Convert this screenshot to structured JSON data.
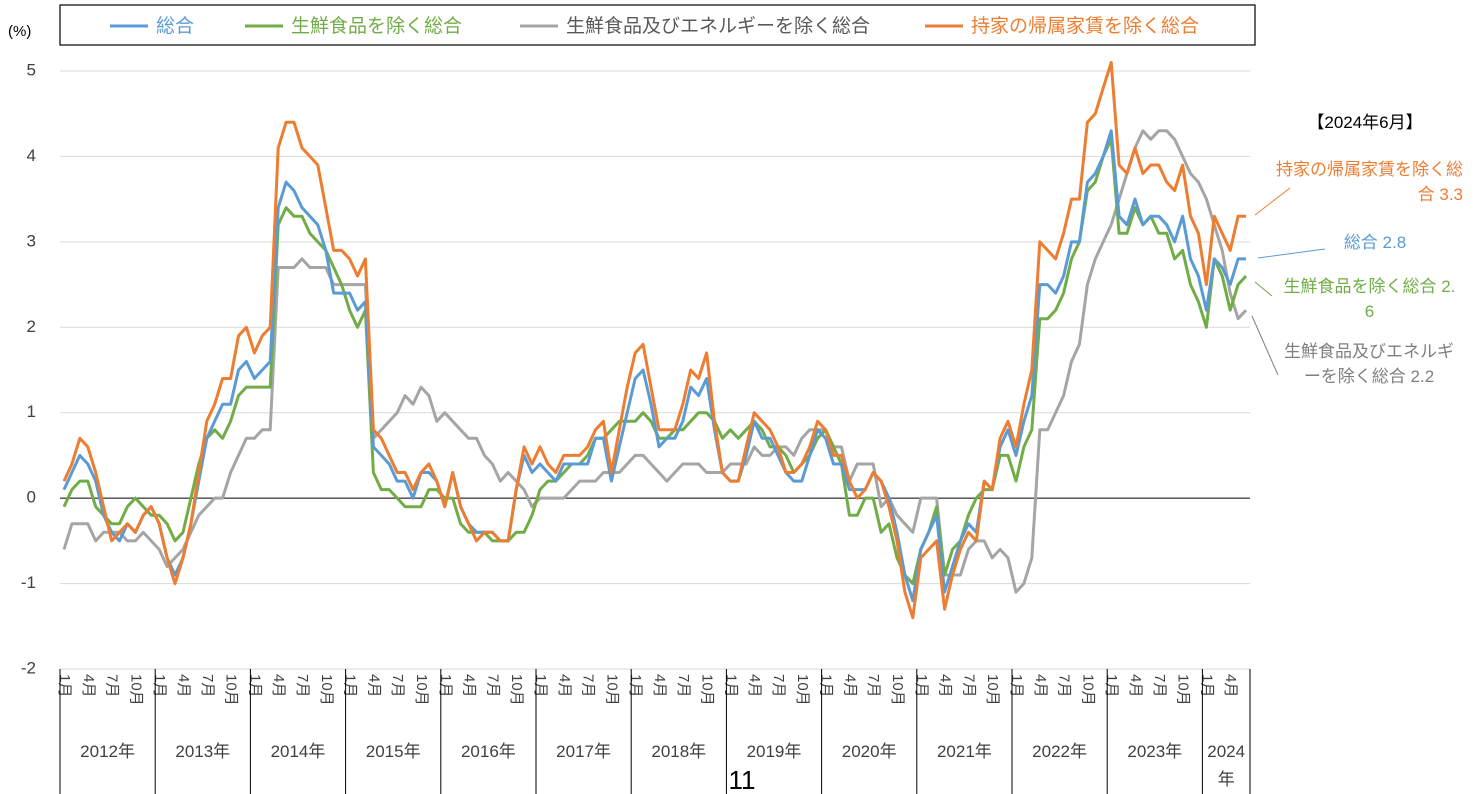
{
  "chart_data": {
    "type": "line",
    "ylabel": "(%)",
    "ylim": [
      -2,
      5
    ],
    "yticks": [
      -2,
      -1,
      0,
      1,
      2,
      3,
      4,
      5
    ],
    "grid": true,
    "categories": [
      "1月",
      null,
      null,
      "4月",
      null,
      null,
      "7月",
      null,
      null,
      "10月",
      null,
      null,
      "1月",
      null,
      null,
      "4月",
      null,
      null,
      "7月",
      null,
      null,
      "10月",
      null,
      null,
      "1月",
      null,
      null,
      "4月",
      null,
      null,
      "7月",
      null,
      null,
      "10月",
      null,
      null,
      "1月",
      null,
      null,
      "4月",
      null,
      null,
      "7月",
      null,
      null,
      "10月",
      null,
      null,
      "1月",
      null,
      null,
      "4月",
      null,
      null,
      "7月",
      null,
      null,
      "10月",
      null,
      null,
      "1月",
      null,
      null,
      "4月",
      null,
      null,
      "7月",
      null,
      null,
      "10月",
      null,
      null,
      "1月",
      null,
      null,
      "4月",
      null,
      null,
      "7月",
      null,
      null,
      "10月",
      null,
      null,
      "1月",
      null,
      null,
      "4月",
      null,
      null,
      "7月",
      null,
      null,
      "10月",
      null,
      null,
      "1月",
      null,
      null,
      "4月",
      null,
      null,
      "7月",
      null,
      null,
      "10月",
      null,
      null,
      "1月",
      null,
      null,
      "4月",
      null,
      null,
      "7月",
      null,
      null,
      "10月",
      null,
      null,
      "1月",
      null,
      null,
      "4月",
      null,
      null,
      "7月",
      null,
      null,
      "10月",
      null,
      null,
      "1月",
      null,
      null,
      "4月",
      null,
      null,
      "7月",
      null,
      null,
      "10月",
      null,
      null,
      "1月",
      null,
      null,
      "4月",
      null,
      null
    ],
    "years": [
      "2012年",
      "2013年",
      "2014年",
      "2015年",
      "2016年",
      "2017年",
      "2018年",
      "2019年",
      "2020年",
      "2021年",
      "2022年",
      "2023年",
      "2024年"
    ],
    "series": [
      {
        "name": "総合",
        "color": "#5b9bd5",
        "values": [
          0.1,
          0.3,
          0.5,
          0.4,
          0.2,
          -0.2,
          -0.4,
          -0.5,
          -0.3,
          -0.4,
          -0.2,
          -0.1,
          -0.3,
          -0.7,
          -0.9,
          -0.7,
          -0.3,
          0.2,
          0.7,
          0.9,
          1.1,
          1.1,
          1.5,
          1.6,
          1.4,
          1.5,
          1.6,
          3.4,
          3.7,
          3.6,
          3.4,
          3.3,
          3.2,
          2.9,
          2.4,
          2.4,
          2.4,
          2.2,
          2.3,
          0.6,
          0.5,
          0.4,
          0.2,
          0.2,
          0.0,
          0.3,
          0.3,
          0.2,
          -0.1,
          0.3,
          -0.1,
          -0.3,
          -0.4,
          -0.4,
          -0.4,
          -0.5,
          -0.5,
          0.1,
          0.5,
          0.3,
          0.4,
          0.3,
          0.2,
          0.4,
          0.4,
          0.4,
          0.4,
          0.7,
          0.7,
          0.2,
          0.6,
          1.0,
          1.4,
          1.5,
          1.1,
          0.6,
          0.7,
          0.7,
          0.9,
          1.3,
          1.2,
          1.4,
          0.8,
          0.3,
          0.2,
          0.2,
          0.5,
          0.9,
          0.7,
          0.7,
          0.5,
          0.3,
          0.2,
          0.2,
          0.5,
          0.8,
          0.7,
          0.4,
          0.4,
          0.1,
          0.1,
          0.1,
          0.3,
          0.2,
          0.0,
          -0.4,
          -0.9,
          -1.2,
          -0.6,
          -0.4,
          -0.2,
          -1.1,
          -0.8,
          -0.5,
          -0.3,
          -0.4,
          0.2,
          0.1,
          0.6,
          0.8,
          0.5,
          0.9,
          1.2,
          2.5,
          2.5,
          2.4,
          2.6,
          3.0,
          3.0,
          3.7,
          3.8,
          4.0,
          4.3,
          3.3,
          3.2,
          3.5,
          3.2,
          3.3,
          3.3,
          3.2,
          3.0,
          3.3,
          2.8,
          2.6,
          2.2,
          2.8,
          2.7,
          2.5,
          2.8,
          2.8
        ]
      },
      {
        "name": "生鮮食品を除く総合",
        "color": "#70ad47",
        "values": [
          -0.1,
          0.1,
          0.2,
          0.2,
          -0.1,
          -0.2,
          -0.3,
          -0.3,
          -0.1,
          0.0,
          -0.1,
          -0.2,
          -0.2,
          -0.3,
          -0.5,
          -0.4,
          0.0,
          0.4,
          0.7,
          0.8,
          0.7,
          0.9,
          1.2,
          1.3,
          1.3,
          1.3,
          1.3,
          3.2,
          3.4,
          3.3,
          3.3,
          3.1,
          3.0,
          2.9,
          2.7,
          2.5,
          2.2,
          2.0,
          2.2,
          0.3,
          0.1,
          0.1,
          0.0,
          -0.1,
          -0.1,
          -0.1,
          0.1,
          0.1,
          0.0,
          0.0,
          -0.3,
          -0.4,
          -0.4,
          -0.4,
          -0.5,
          -0.5,
          -0.5,
          -0.4,
          -0.4,
          -0.2,
          0.1,
          0.2,
          0.2,
          0.3,
          0.4,
          0.4,
          0.5,
          0.7,
          0.7,
          0.8,
          0.9,
          0.9,
          0.9,
          1.0,
          0.9,
          0.7,
          0.7,
          0.8,
          0.8,
          0.9,
          1.0,
          1.0,
          0.9,
          0.7,
          0.8,
          0.7,
          0.8,
          0.9,
          0.8,
          0.6,
          0.6,
          0.5,
          0.3,
          0.4,
          0.5,
          0.7,
          0.8,
          0.6,
          0.4,
          -0.2,
          -0.2,
          0.0,
          0.0,
          -0.4,
          -0.3,
          -0.7,
          -0.9,
          -1.0,
          -0.6,
          -0.4,
          -0.1,
          -0.9,
          -0.6,
          -0.5,
          -0.2,
          0.0,
          0.1,
          0.1,
          0.5,
          0.5,
          0.2,
          0.6,
          0.8,
          2.1,
          2.1,
          2.2,
          2.4,
          2.8,
          3.0,
          3.6,
          3.7,
          4.0,
          4.2,
          3.1,
          3.1,
          3.4,
          3.2,
          3.3,
          3.1,
          3.1,
          2.8,
          2.9,
          2.5,
          2.3,
          2.0,
          2.8,
          2.6,
          2.2,
          2.5,
          2.6
        ]
      },
      {
        "name": "生鮮食品及びエネルギーを除く総合",
        "color": "#a5a5a5",
        "values": [
          -0.6,
          -0.3,
          -0.3,
          -0.3,
          -0.5,
          -0.4,
          -0.4,
          -0.4,
          -0.5,
          -0.5,
          -0.4,
          -0.5,
          -0.6,
          -0.8,
          -0.7,
          -0.6,
          -0.4,
          -0.2,
          -0.1,
          0.0,
          0.0,
          0.3,
          0.5,
          0.7,
          0.7,
          0.8,
          0.8,
          2.7,
          2.7,
          2.7,
          2.8,
          2.7,
          2.7,
          2.7,
          2.5,
          2.5,
          2.5,
          2.5,
          2.5,
          0.7,
          0.8,
          0.9,
          1.0,
          1.2,
          1.1,
          1.3,
          1.2,
          0.9,
          1.0,
          0.9,
          0.8,
          0.7,
          0.7,
          0.5,
          0.4,
          0.2,
          0.3,
          0.2,
          0.1,
          -0.1,
          0.0,
          0.0,
          0.0,
          0.0,
          0.1,
          0.2,
          0.2,
          0.2,
          0.3,
          0.3,
          0.3,
          0.4,
          0.5,
          0.5,
          0.4,
          0.3,
          0.2,
          0.3,
          0.4,
          0.4,
          0.4,
          0.3,
          0.3,
          0.3,
          0.4,
          0.4,
          0.4,
          0.6,
          0.5,
          0.5,
          0.6,
          0.6,
          0.5,
          0.7,
          0.8,
          0.8,
          0.8,
          0.6,
          0.6,
          0.2,
          0.4,
          0.4,
          0.4,
          -0.1,
          0.0,
          -0.2,
          -0.3,
          -0.4,
          0.0,
          0.0,
          0.0,
          -0.9,
          -0.9,
          -0.9,
          -0.6,
          -0.5,
          -0.5,
          -0.7,
          -0.6,
          -0.7,
          -1.1,
          -1.0,
          -0.7,
          0.8,
          0.8,
          1.0,
          1.2,
          1.6,
          1.8,
          2.5,
          2.8,
          3.0,
          3.2,
          3.5,
          3.8,
          4.1,
          4.3,
          4.2,
          4.3,
          4.3,
          4.2,
          4.0,
          3.8,
          3.7,
          3.5,
          3.2,
          2.9,
          2.4,
          2.1,
          2.2
        ]
      },
      {
        "name": "持家の帰属家賃を除く総合",
        "color": "#ed7d31",
        "values": [
          0.2,
          0.4,
          0.7,
          0.6,
          0.3,
          -0.1,
          -0.5,
          -0.4,
          -0.3,
          -0.4,
          -0.2,
          -0.1,
          -0.3,
          -0.7,
          -1.0,
          -0.7,
          -0.3,
          0.3,
          0.9,
          1.1,
          1.4,
          1.4,
          1.9,
          2.0,
          1.7,
          1.9,
          2.0,
          4.1,
          4.4,
          4.4,
          4.1,
          4.0,
          3.9,
          3.4,
          2.9,
          2.9,
          2.8,
          2.6,
          2.8,
          0.8,
          0.7,
          0.5,
          0.3,
          0.3,
          0.1,
          0.3,
          0.4,
          0.2,
          -0.1,
          0.3,
          -0.1,
          -0.3,
          -0.5,
          -0.4,
          -0.4,
          -0.5,
          -0.5,
          0.1,
          0.6,
          0.4,
          0.6,
          0.4,
          0.3,
          0.5,
          0.5,
          0.5,
          0.6,
          0.8,
          0.9,
          0.3,
          0.8,
          1.3,
          1.7,
          1.8,
          1.3,
          0.8,
          0.8,
          0.8,
          1.1,
          1.5,
          1.4,
          1.7,
          0.9,
          0.3,
          0.2,
          0.2,
          0.6,
          1.0,
          0.9,
          0.8,
          0.6,
          0.3,
          0.3,
          0.4,
          0.6,
          0.9,
          0.8,
          0.5,
          0.5,
          0.2,
          0.0,
          0.1,
          0.3,
          0.2,
          -0.1,
          -0.5,
          -1.1,
          -1.4,
          -0.7,
          -0.6,
          -0.5,
          -1.3,
          -0.9,
          -0.6,
          -0.4,
          -0.5,
          0.2,
          0.1,
          0.7,
          0.9,
          0.6,
          1.1,
          1.5,
          3.0,
          2.9,
          2.8,
          3.1,
          3.5,
          3.5,
          4.4,
          4.5,
          4.8,
          5.1,
          3.9,
          3.8,
          4.1,
          3.8,
          3.9,
          3.9,
          3.7,
          3.6,
          3.9,
          3.3,
          3.1,
          2.5,
          3.3,
          3.1,
          2.9,
          3.3,
          3.3
        ]
      }
    ],
    "annotations": [
      {
        "text": "【2024年6月】",
        "color": "#000000"
      },
      {
        "text": "持家の帰属家賃を除く総合 3.3",
        "color": "#ed7d31"
      },
      {
        "text": "総合 2.8",
        "color": "#5b9bd5"
      },
      {
        "text": "生鮮食品を除く総合 2.6",
        "color": "#70ad47"
      },
      {
        "text": "生鮮食品及びエネルギーを除く総合 2.2",
        "color": "#7f7f7f"
      }
    ]
  },
  "page_number": "11"
}
